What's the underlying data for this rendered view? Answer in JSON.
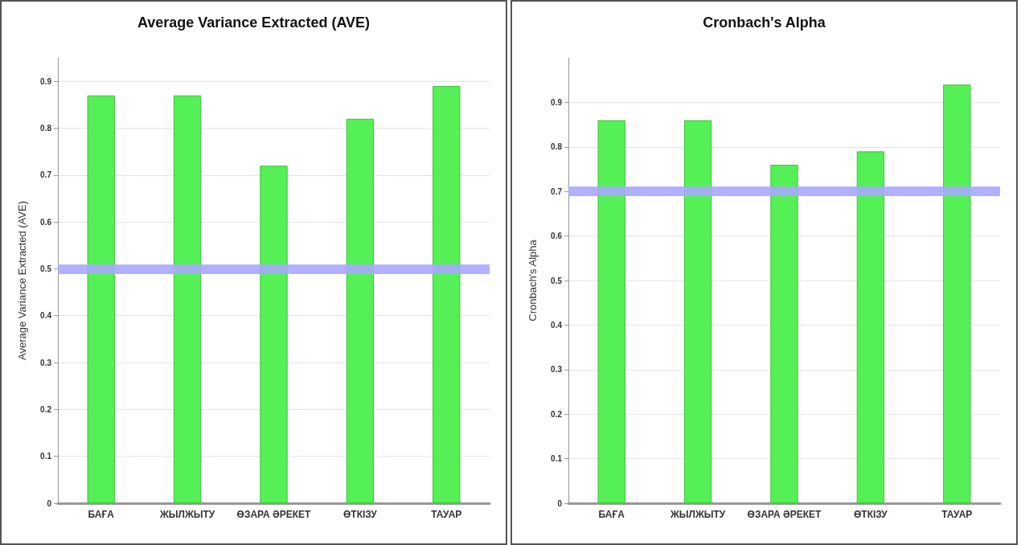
{
  "chart_data": [
    {
      "type": "bar",
      "title": "Average Variance Extracted (AVE)",
      "ylabel": "Average Variance Extracted (AVE)",
      "categories": [
        "БАҒА",
        "ЖЫЛЖЫТУ",
        "ӨЗАРА ӘРЕКЕТ",
        "ӨТКІЗУ",
        "ТАУАР"
      ],
      "values": [
        0.87,
        0.87,
        0.72,
        0.82,
        0.89
      ],
      "color": "#55f055",
      "ylim": [
        0,
        0.95
      ],
      "yticks": [
        0,
        0.1,
        0.2,
        0.3,
        0.4,
        0.5,
        0.6,
        0.7,
        0.8,
        0.9
      ],
      "grid": "y",
      "ref_lines": [
        {
          "axis": "y",
          "value": 0.5,
          "color": "#a8a8ff"
        }
      ]
    },
    {
      "type": "bar",
      "title": "Cronbach's Alpha",
      "ylabel": "Cronbach's Alpha",
      "categories": [
        "БАҒА",
        "ЖЫЛЖЫТУ",
        "ӨЗАРА ӘРЕКЕТ",
        "ӨТКІЗУ",
        "ТАУАР"
      ],
      "values": [
        0.86,
        0.86,
        0.76,
        0.79,
        0.94
      ],
      "color": "#55f055",
      "ylim": [
        0,
        1
      ],
      "yticks": [
        0,
        0.1,
        0.2,
        0.3,
        0.4,
        0.5,
        0.6,
        0.7,
        0.8,
        0.9
      ],
      "grid": "y",
      "ref_lines": [
        {
          "axis": "y",
          "value": 0.7,
          "color": "#a8a8ff"
        }
      ]
    }
  ]
}
